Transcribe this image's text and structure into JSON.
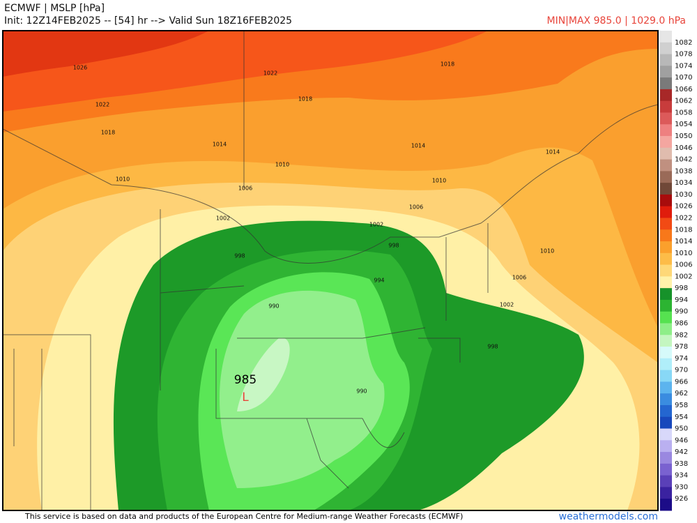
{
  "header": {
    "title": "ECMWF | MSLP [hPa]",
    "init": "Init: 12Z14FEB2025 -- [54] hr --> Valid Sun 18Z16FEB2025",
    "minmax": "MIN|MAX 985.0 | 1029.0 hPa"
  },
  "map": {
    "low_value": "985",
    "low_symbol": "L",
    "contour_labels": [
      "1026",
      "1022",
      "1018",
      "1022",
      "1018",
      "1018",
      "1014",
      "1010",
      "1014",
      "1010",
      "1014",
      "1006",
      "1010",
      "1006",
      "1002",
      "1002",
      "998",
      "998",
      "994",
      "990",
      "990",
      "1010",
      "1006",
      "1002",
      "998"
    ]
  },
  "colorbar": {
    "labels": [
      "1082",
      "1078",
      "1074",
      "1070",
      "1066",
      "1062",
      "1058",
      "1054",
      "1050",
      "1046",
      "1042",
      "1038",
      "1034",
      "1030",
      "1026",
      "1022",
      "1018",
      "1014",
      "1010",
      "1006",
      "1002",
      "998",
      "994",
      "990",
      "986",
      "982",
      "978",
      "974",
      "970",
      "966",
      "962",
      "958",
      "954",
      "950",
      "946",
      "942",
      "938",
      "934",
      "930",
      "926"
    ],
    "colors": [
      "#e6e6e6",
      "#d0d0d0",
      "#b8b8b8",
      "#a0a0a0",
      "#7a7a7a",
      "#a82828",
      "#c83c3c",
      "#dc5a5a",
      "#ee8080",
      "#f4a6a0",
      "#e0bcae",
      "#c09080",
      "#9a6a58",
      "#704838",
      "#a80c0c",
      "#e01c0c",
      "#f24a14",
      "#f8781a",
      "#fba02c",
      "#fdbc48",
      "#fed878",
      "#fff2aa",
      "#16922a",
      "#2cb432",
      "#56e250",
      "#8eee88",
      "#c4f6c0",
      "#d6fafa",
      "#b0eefa",
      "#88d8f6",
      "#5cb4ee",
      "#3a8ce0",
      "#2466d0",
      "#1848bc",
      "#d8d8fa",
      "#bab0f0",
      "#9a88e0",
      "#7a62d0",
      "#5a40b8",
      "#3a22a0",
      "#1c0c88"
    ]
  },
  "footer": {
    "credit": "This service is based on data and products of the European Centre for Medium-range Weather Forecasts (ECMWF)",
    "site": "weathermodels.com"
  }
}
